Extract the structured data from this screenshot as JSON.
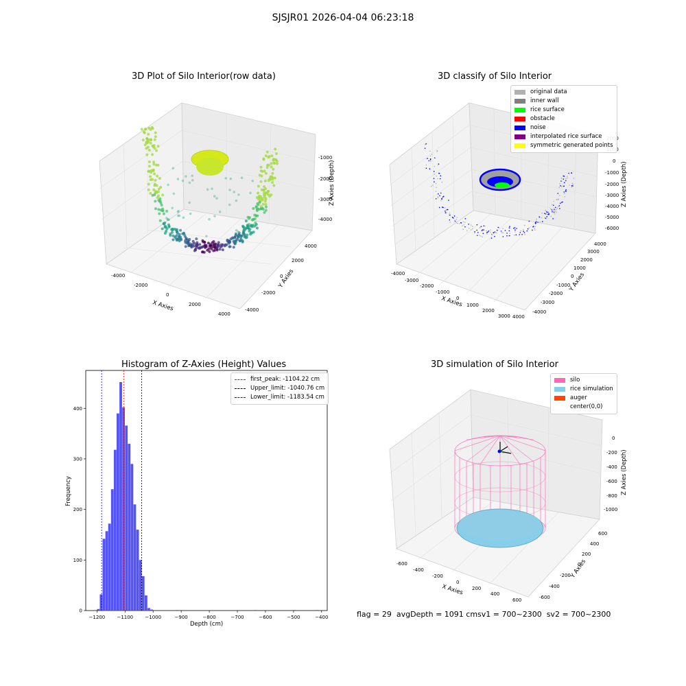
{
  "suptitle": "SJSJR01 2026-04-04 06:23:18",
  "panels": {
    "raw": {
      "title": "3D Plot of Silo Interior(row data)",
      "xlabel": "X Axies",
      "ylabel": "Y Axies",
      "zlabel": "Z Axies (Depth)",
      "xticks": [
        "-4000",
        "-2000",
        "0",
        "2000",
        "4000"
      ],
      "yticks": [
        "-4000",
        "-2000",
        "0",
        "2000",
        "4000"
      ],
      "zticks": [
        "-1000",
        "-2000",
        "-3000",
        "-4000"
      ]
    },
    "classify": {
      "title": "3D classify of Silo Interior",
      "xlabel": "X Axies",
      "ylabel": "Y Axies",
      "zlabel": "Z Axies (Depth)",
      "xticks": [
        "-4000",
        "-3000",
        "-2000",
        "-1000",
        "0",
        "1000",
        "2000",
        "3000",
        "4000"
      ],
      "yticks": [
        "-4000",
        "-3000",
        "-2000",
        "-1000",
        "0",
        "1000",
        "2000",
        "3000",
        "4000"
      ],
      "zticks": [
        "2000",
        "1000",
        "0",
        "-1000",
        "-2000",
        "-3000",
        "-4000",
        "-5000",
        "-6000"
      ],
      "legend": [
        {
          "label": "original data",
          "color": "#b0b0b0"
        },
        {
          "label": "inner wall",
          "color": "#808080"
        },
        {
          "label": "rice surface",
          "color": "#00ff00"
        },
        {
          "label": "obstacle",
          "color": "#ff0000"
        },
        {
          "label": "noise",
          "color": "#0000ff"
        },
        {
          "label": "interpolated rice surface",
          "color": "#800080"
        },
        {
          "label": "symmetric generated points",
          "color": "#ffff00"
        }
      ]
    },
    "histogram": {
      "title": "Histogram of Z-Axies (Height) Values",
      "xlabel": "Depth (cm)",
      "ylabel": "Frequency",
      "legend": [
        {
          "label": "first_peak: -1104.22 cm",
          "color": "#ff0000"
        },
        {
          "label": "Upper_limit: -1040.76 cm",
          "color": "#000000"
        },
        {
          "label": "Lower_limit: -1183.54 cm",
          "color": "#0000ff"
        }
      ]
    },
    "simulation": {
      "title": "3D simulation of Silo Interior",
      "xlabel": "X Axies",
      "ylabel": "Y Axies",
      "zlabel": "Z Axies (Depth)",
      "xticks": [
        "-600",
        "-400",
        "-200",
        "0",
        "200",
        "400",
        "600"
      ],
      "yticks": [
        "-600",
        "-400",
        "-200",
        "0",
        "200",
        "400",
        "600"
      ],
      "zticks": [
        "0",
        "-200",
        "-400",
        "-600",
        "-800",
        "-1000"
      ],
      "legend": [
        {
          "label": "silo",
          "color": "#ff69b4"
        },
        {
          "label": "rice simulation",
          "color": "#87ceeb"
        },
        {
          "label": "auger",
          "color": "#ff4500"
        },
        {
          "label": "center(0,0)",
          "color": "#ffffff"
        }
      ]
    }
  },
  "footer": "flag = 29  avgDepth = 1091 cmsv1 = 700~2300  sv2 = 700~2300",
  "chart_data": {
    "type": "bar",
    "title": "Histogram of Z-Axies (Height) Values",
    "xlabel": "Depth (cm)",
    "ylabel": "Frequency",
    "xlim": [
      -1240,
      -380
    ],
    "ylim": [
      0,
      475
    ],
    "xticks": [
      -1200,
      -1100,
      -1000,
      -900,
      -800,
      -700,
      -600,
      -500,
      -400
    ],
    "yticks": [
      0,
      100,
      200,
      300,
      400
    ],
    "bin_width": 10,
    "bins": [
      {
        "start": -1200,
        "value": 3
      },
      {
        "start": -1190,
        "value": 32
      },
      {
        "start": -1180,
        "value": 142
      },
      {
        "start": -1170,
        "value": 157
      },
      {
        "start": -1160,
        "value": 172
      },
      {
        "start": -1150,
        "value": 240
      },
      {
        "start": -1140,
        "value": 318
      },
      {
        "start": -1130,
        "value": 390
      },
      {
        "start": -1120,
        "value": 452
      },
      {
        "start": -1110,
        "value": 402
      },
      {
        "start": -1100,
        "value": 366
      },
      {
        "start": -1090,
        "value": 330
      },
      {
        "start": -1080,
        "value": 290
      },
      {
        "start": -1070,
        "value": 210
      },
      {
        "start": -1060,
        "value": 160
      },
      {
        "start": -1050,
        "value": 100
      },
      {
        "start": -1040,
        "value": 68
      },
      {
        "start": -1030,
        "value": 30
      },
      {
        "start": -1020,
        "value": 5
      },
      {
        "start": -1010,
        "value": 2
      },
      {
        "start": -920,
        "value": 1
      },
      {
        "start": -640,
        "value": 1
      },
      {
        "start": -500,
        "value": 1
      },
      {
        "start": -420,
        "value": 1
      }
    ],
    "vlines": [
      {
        "name": "first_peak",
        "x": -1104.22,
        "color": "#ff0000"
      },
      {
        "name": "Upper_limit",
        "x": -1040.76,
        "color": "#000000"
      },
      {
        "name": "Lower_limit",
        "x": -1183.54,
        "color": "#0000ff"
      }
    ],
    "bar_color": "#4a4af5",
    "legend_position": "top-right"
  }
}
